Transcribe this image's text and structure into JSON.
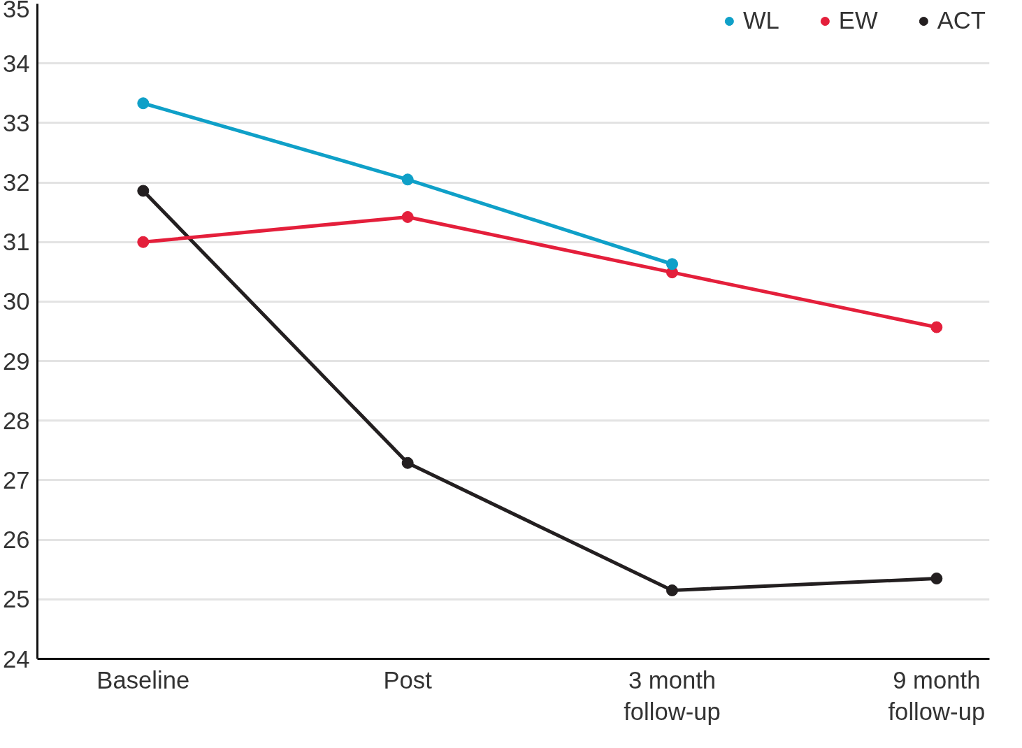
{
  "chart_data": {
    "type": "line",
    "categories": [
      "Baseline",
      "Post",
      "3 month\nfollow-up",
      "9 month\nfollow-up"
    ],
    "series": [
      {
        "name": "WL",
        "color": "#0fa0c8",
        "values": [
          33.33,
          32.05,
          30.63,
          null
        ]
      },
      {
        "name": "EW",
        "color": "#e41f3b",
        "values": [
          31.0,
          31.42,
          30.49,
          29.57
        ]
      },
      {
        "name": "ACT",
        "color": "#231f20",
        "values": [
          31.86,
          27.29,
          25.15,
          25.35
        ]
      }
    ],
    "ylim": [
      24,
      35
    ],
    "yticks": [
      24,
      25,
      26,
      27,
      28,
      29,
      30,
      31,
      32,
      33,
      34,
      35
    ],
    "grid": "y",
    "legend": "top right",
    "marker": "circle",
    "line_style": "solid"
  }
}
